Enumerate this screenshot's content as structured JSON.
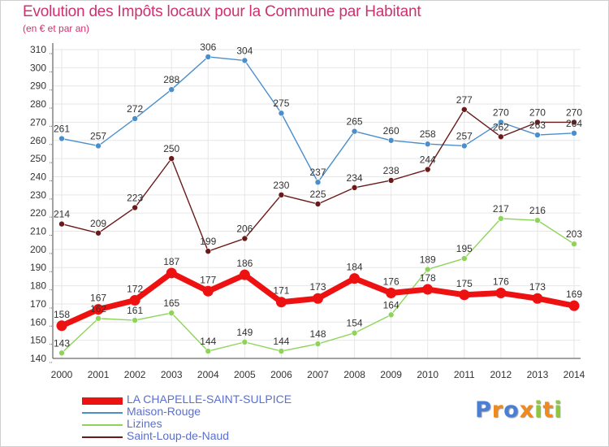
{
  "header": {
    "title": "Evolution des Impôts locaux pour la Commune par Habitant",
    "subtitle": "(en € et par an)"
  },
  "logo": {
    "letters": [
      "P",
      "r",
      "o",
      "x",
      "i",
      "t",
      "i"
    ],
    "colors": [
      "#4a7fd4",
      "#f08a1c",
      "#4a7fd4",
      "#f08a1c",
      "#8dc63f",
      "#f08a1c",
      "#8dc63f"
    ]
  },
  "colors": {
    "title": "#d0306d",
    "grid": "#e6e6e6",
    "axis_tick": "#d0306d",
    "legend_text": "#5a6fd0"
  },
  "chart_data": {
    "type": "line",
    "title": "Evolution des Impôts locaux pour la Commune par Habitant",
    "subtitle": "(en € et par an)",
    "xlabel": "",
    "ylabel": "",
    "x": [
      "2000",
      "2001",
      "2002",
      "2003",
      "2004",
      "2005",
      "2006",
      "2007",
      "2008",
      "2009",
      "2010",
      "2011",
      "2012",
      "2013",
      "2014"
    ],
    "ylim": [
      140,
      310
    ],
    "yticks": [
      140,
      150,
      160,
      170,
      180,
      190,
      200,
      210,
      220,
      230,
      240,
      250,
      260,
      270,
      280,
      290,
      300,
      310
    ],
    "grid": true,
    "legend_position": "bottom-left",
    "series": [
      {
        "name": "Maison-Rouge",
        "color": "#4a8fcc",
        "emphasis": false,
        "values": [
          261,
          257,
          272,
          288,
          306,
          304,
          275,
          237,
          265,
          260,
          258,
          257,
          270,
          263,
          264
        ],
        "labels": [
          "261",
          "257",
          "272",
          "288",
          "306",
          "304",
          "275",
          "237",
          "265",
          "260",
          "258",
          "257",
          "270",
          "263",
          "264"
        ]
      },
      {
        "name": "Saint-Loup-de-Naud",
        "color": "#6b1a1a",
        "emphasis": false,
        "values": [
          214,
          209,
          223,
          250,
          199,
          206,
          230,
          225,
          234,
          238,
          244,
          277,
          262,
          270,
          270
        ],
        "labels": [
          "214",
          "209",
          "223",
          "250",
          "199",
          "206",
          "230",
          "225",
          "234",
          "238",
          "244",
          "277",
          "262",
          "270",
          "270"
        ]
      },
      {
        "name": "Lizines",
        "color": "#8ed45a",
        "emphasis": false,
        "values": [
          143,
          162,
          161,
          165,
          144,
          149,
          144,
          148,
          154,
          164,
          189,
          195,
          217,
          216,
          203
        ],
        "labels": [
          "143",
          "162",
          "161",
          "165",
          "144",
          "149",
          "144",
          "148",
          "154",
          "164",
          "189",
          "195",
          "217",
          "216",
          "203"
        ]
      },
      {
        "name": "LA CHAPELLE-SAINT-SULPICE",
        "color": "#ee1111",
        "emphasis": true,
        "values": [
          158,
          167,
          172,
          187,
          177,
          186,
          171,
          173,
          184,
          176,
          178,
          175,
          176,
          173,
          169
        ],
        "labels": [
          "158",
          "167",
          "172",
          "187",
          "177",
          "186",
          "171",
          "173",
          "184",
          "176",
          "178",
          "175",
          "176",
          "173",
          "169"
        ]
      }
    ],
    "legend_order": [
      "LA CHAPELLE-SAINT-SULPICE",
      "Maison-Rouge",
      "Lizines",
      "Saint-Loup-de-Naud"
    ]
  }
}
